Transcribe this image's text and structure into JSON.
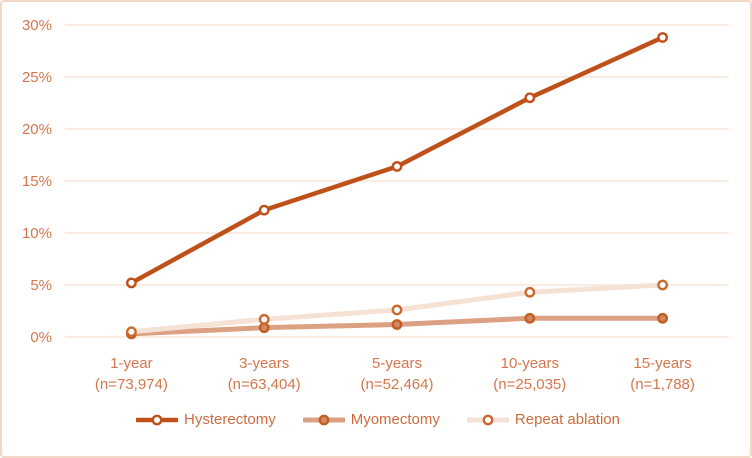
{
  "chart_data": {
    "type": "line",
    "title": "",
    "categories": [
      {
        "label": "1-year",
        "n_label": "(n=73,974)"
      },
      {
        "label": "3-years",
        "n_label": "(n=63,404)"
      },
      {
        "label": "5-years",
        "n_label": "(n=52,464)"
      },
      {
        "label": "10-years",
        "n_label": "(n=25,035)"
      },
      {
        "label": "15-years",
        "n_label": "(n=1,788)"
      }
    ],
    "series": [
      {
        "name": "Hysterectomy",
        "values": [
          5.2,
          12.2,
          16.4,
          23.0,
          28.8
        ],
        "line_color": "#C0501A",
        "line_width": 4.5,
        "marker": {
          "fill": "#FFFFFF",
          "stroke": "#C0501A"
        }
      },
      {
        "name": "Myomectomy",
        "values": [
          0.3,
          0.9,
          1.2,
          1.8,
          1.8
        ],
        "line_color": "#DCA083",
        "line_width": 5,
        "marker": {
          "fill": "#D18A60",
          "stroke": "#C25E24"
        }
      },
      {
        "name": "Repeat ablation",
        "values": [
          0.5,
          1.7,
          2.6,
          4.3,
          5.0
        ],
        "line_color": "#F6E1D5",
        "line_width": 5,
        "marker": {
          "fill": "#FFFFFF",
          "stroke": "#CA6A31"
        }
      }
    ],
    "y_axis": {
      "ticks": [
        "0%",
        "5%",
        "10%",
        "15%",
        "20%",
        "25%",
        "30%"
      ],
      "min": 0,
      "max": 30,
      "step": 5
    },
    "grid": true,
    "legend_position": "bottom",
    "xlabel": "",
    "ylabel": ""
  },
  "style": {
    "axis_text_color": "#D5764C",
    "legend_text_color": "#CE6B3D",
    "gridline_color": "#F8E5DA",
    "border_color": "#F2D7C6",
    "background": "#FFFFFF"
  }
}
